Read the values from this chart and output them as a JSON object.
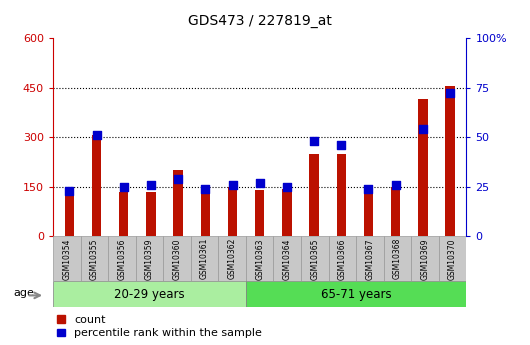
{
  "title": "GDS473 / 227819_at",
  "samples": [
    "GSM10354",
    "GSM10355",
    "GSM10356",
    "GSM10359",
    "GSM10360",
    "GSM10361",
    "GSM10362",
    "GSM10363",
    "GSM10364",
    "GSM10365",
    "GSM10366",
    "GSM10367",
    "GSM10368",
    "GSM10369",
    "GSM10370"
  ],
  "count": [
    125,
    305,
    135,
    133,
    200,
    128,
    148,
    140,
    142,
    248,
    248,
    128,
    150,
    415,
    455
  ],
  "percentile": [
    23,
    51,
    25,
    26,
    29,
    24,
    26,
    27,
    25,
    48,
    46,
    24,
    26,
    54,
    72
  ],
  "group1_label": "20-29 years",
  "group1_count": 7,
  "group2_label": "65-71 years",
  "group2_count": 8,
  "age_label": "age",
  "left_ylim": [
    0,
    600
  ],
  "right_ylim": [
    0,
    100
  ],
  "left_yticks": [
    0,
    150,
    300,
    450,
    600
  ],
  "right_yticks": [
    0,
    25,
    50,
    75,
    100
  ],
  "right_yticklabels": [
    "0",
    "25",
    "50",
    "75",
    "100%"
  ],
  "left_color": "#cc0000",
  "right_color": "#0000cc",
  "bar_color": "#bb1100",
  "dot_color": "#0000cc",
  "bg_color_samples": "#c8c8c8",
  "bg_color_group1": "#aaeea0",
  "bg_color_group2": "#55dd55",
  "legend_count_label": "count",
  "legend_pct_label": "percentile rank within the sample",
  "bar_width": 0.35,
  "dot_size": 28,
  "hline_values": [
    150,
    300,
    450
  ]
}
